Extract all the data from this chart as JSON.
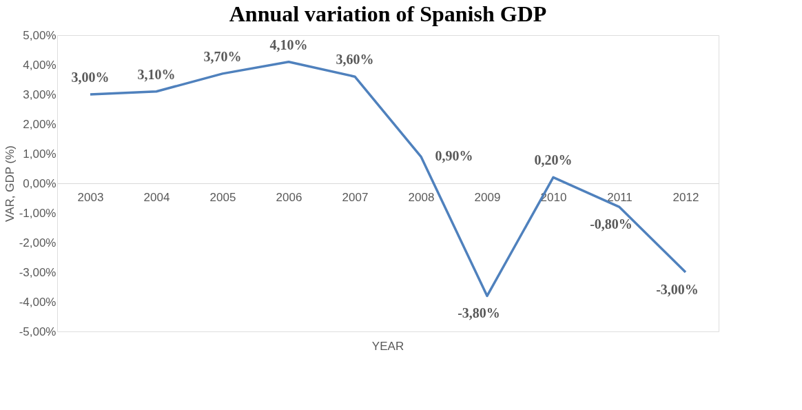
{
  "chart_data": {
    "type": "line",
    "title": "Annual variation of Spanish GDP",
    "xlabel": "YEAR",
    "ylabel": "VAR, GDP (%)",
    "categories": [
      "2003",
      "2004",
      "2005",
      "2006",
      "2007",
      "2008",
      "2009",
      "2010",
      "2011",
      "2012"
    ],
    "series": [
      {
        "color": "#4f81bd",
        "values": [
          3.0,
          3.1,
          3.7,
          4.1,
          3.6,
          0.9,
          -3.8,
          0.2,
          -0.8,
          -3.0
        ]
      }
    ],
    "value_labels": [
      "3,00%",
      "3,10%",
      "3,70%",
      "4,10%",
      "3,60%",
      "0,90%",
      "-3,80%",
      "0,20%",
      "-0,80%",
      "-3,00%"
    ],
    "ylim": [
      -5,
      5
    ],
    "yticks": [
      {
        "value": -5,
        "label": "-5,00%"
      },
      {
        "value": -4,
        "label": "-4,00%"
      },
      {
        "value": -3,
        "label": "-3,00%"
      },
      {
        "value": -2,
        "label": "-2,00%"
      },
      {
        "value": -1,
        "label": "-1,00%"
      },
      {
        "value": 0,
        "label": "0,00%"
      },
      {
        "value": 1,
        "label": "1,00%"
      },
      {
        "value": 2,
        "label": "2,00%"
      },
      {
        "value": 3,
        "label": "3,00%"
      },
      {
        "value": 4,
        "label": "4,00%"
      },
      {
        "value": 5,
        "label": "5,00%"
      }
    ],
    "grid": false,
    "marker": "none",
    "line_style": "solid"
  }
}
